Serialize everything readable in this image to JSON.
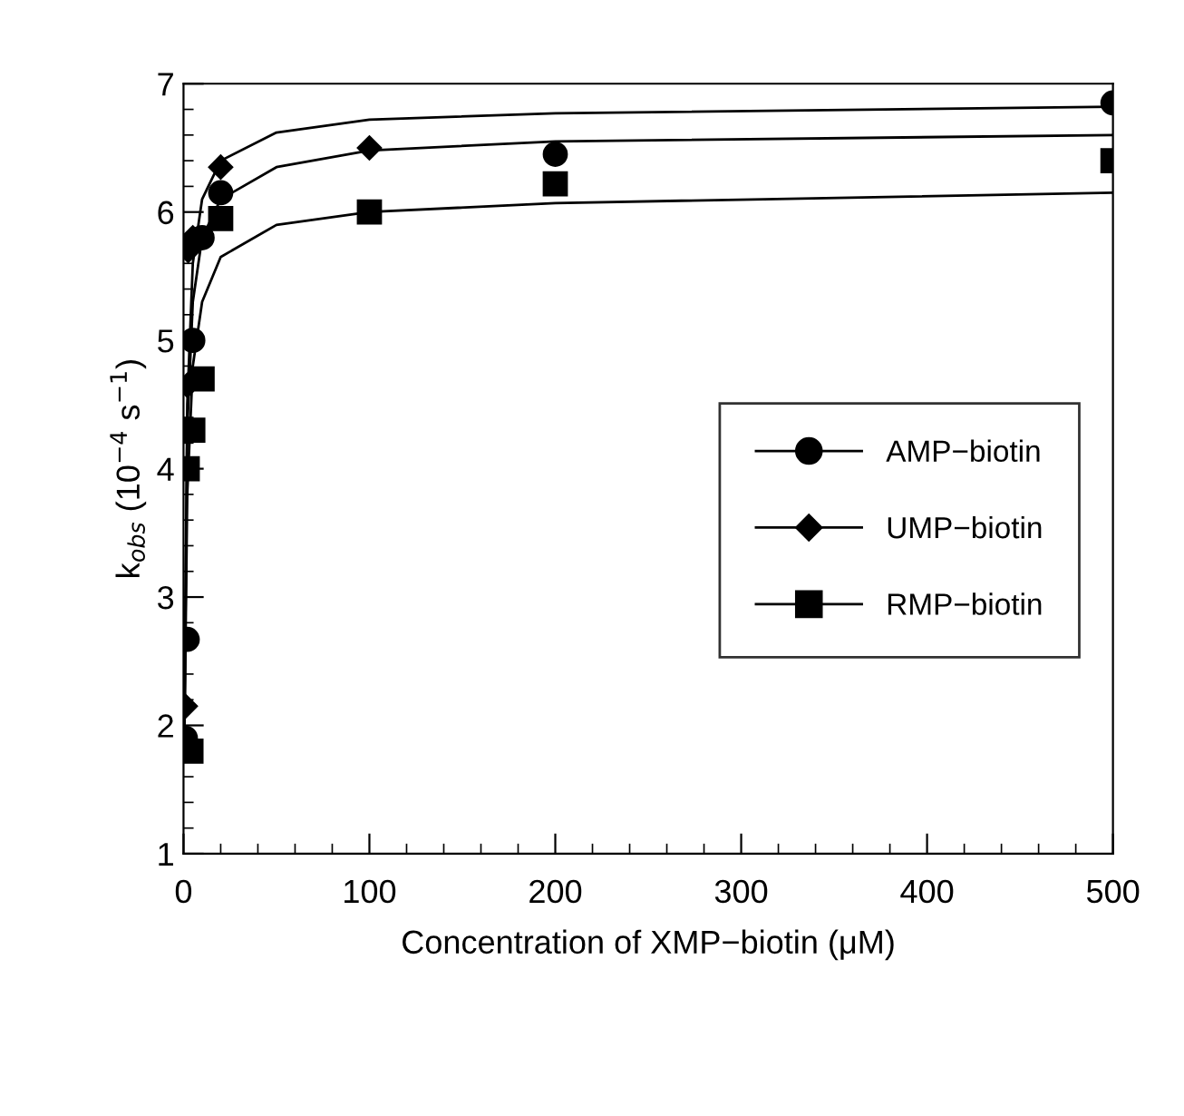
{
  "chart_data": {
    "type": "scatter",
    "xlabel": "Concentration of XMP−biotin (μM)",
    "ylabel": "k$_{obs}$ (10$^{−4}$ s$^{−1}$)",
    "xlim": [
      0,
      500
    ],
    "ylim": [
      1,
      7
    ],
    "xticks": [
      0,
      100,
      200,
      300,
      400,
      500
    ],
    "yticks": [
      1,
      2,
      3,
      4,
      5,
      6,
      7
    ],
    "grid": false,
    "legend": "right",
    "series": [
      {
        "name": "AMP−biotin",
        "marker": "circle",
        "color": "#000000",
        "x": [
          1,
          2,
          5,
          10,
          20,
          200,
          500
        ],
        "values": [
          1.9,
          2.67,
          5.0,
          5.8,
          6.15,
          6.45,
          6.85
        ]
      },
      {
        "name": "UMP−biotin",
        "marker": "diamond",
        "color": "#000000",
        "x": [
          1,
          2,
          2.5,
          5,
          20,
          100
        ],
        "values": [
          2.15,
          4.65,
          5.7,
          5.8,
          6.35,
          6.5
        ]
      },
      {
        "name": "RMP−biotin",
        "marker": "square",
        "color": "#000000",
        "x": [
          4,
          2,
          5,
          10,
          20,
          100,
          200,
          500
        ],
        "values": [
          1.8,
          4.0,
          4.3,
          4.7,
          5.95,
          6.0,
          6.22,
          6.4
        ]
      },
      {
        "type": "line",
        "color": "#000000",
        "x": [
          0.5,
          2,
          5,
          10,
          20,
          50,
          100,
          200,
          500
        ],
        "values": [
          2.0,
          4.5,
          5.6,
          6.1,
          6.4,
          6.62,
          6.72,
          6.77,
          6.82
        ]
      },
      {
        "type": "line",
        "color": "#000000",
        "x": [
          0.5,
          2,
          5,
          10,
          20,
          50,
          100,
          200,
          500
        ],
        "values": [
          2.0,
          4.3,
          5.3,
          5.8,
          6.1,
          6.35,
          6.48,
          6.55,
          6.6
        ]
      },
      {
        "type": "line",
        "color": "#000000",
        "x": [
          0.5,
          2,
          5,
          10,
          20,
          50,
          100,
          200,
          500
        ],
        "values": [
          1.9,
          3.8,
          4.8,
          5.3,
          5.65,
          5.9,
          6.0,
          6.07,
          6.15
        ]
      }
    ]
  }
}
